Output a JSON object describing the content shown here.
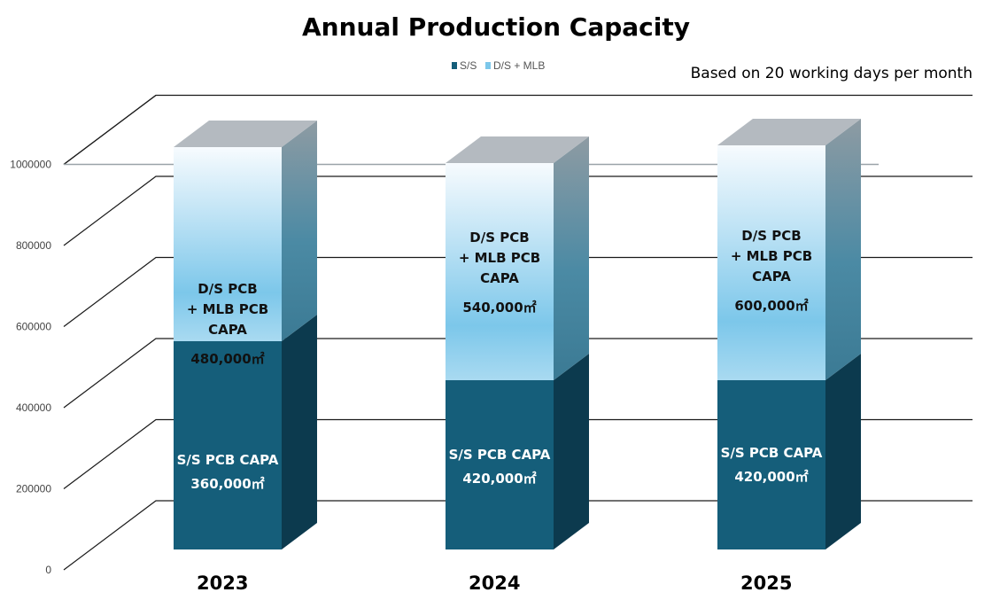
{
  "chart_data": {
    "type": "bar",
    "stacked": true,
    "three_d": true,
    "title": "Annual Production Capacity",
    "note": "Based on 20 working days per month",
    "legend_position": "top-center",
    "grid": true,
    "categories": [
      "2023",
      "2024",
      "2025"
    ],
    "yticks": [
      "0",
      "200000",
      "400000",
      "600000",
      "800000",
      "1000000"
    ],
    "ylim": [
      0,
      1000000
    ],
    "series": [
      {
        "name": "S/S",
        "values": [
          360000,
          420000,
          420000
        ],
        "color": "#155e7a",
        "labels": [
          [
            "S/S PCB CAPA",
            "360,000㎡"
          ],
          [
            "S/S PCB CAPA",
            "420,000㎡"
          ],
          [
            "S/S PCB CAPA",
            "420,000㎡"
          ]
        ]
      },
      {
        "name": "D/S + MLB",
        "values": [
          480000,
          540000,
          600000
        ],
        "color": "#7cc7ea",
        "labels": [
          [
            "D/S PCB",
            "+ MLB PCB",
            "CAPA",
            "480,000㎡"
          ],
          [
            "D/S PCB",
            "+ MLB PCB",
            "CAPA",
            "540,000㎡"
          ],
          [
            "D/S PCB",
            "+ MLB PCB",
            "CAPA",
            "600,000㎡"
          ]
        ]
      }
    ]
  }
}
